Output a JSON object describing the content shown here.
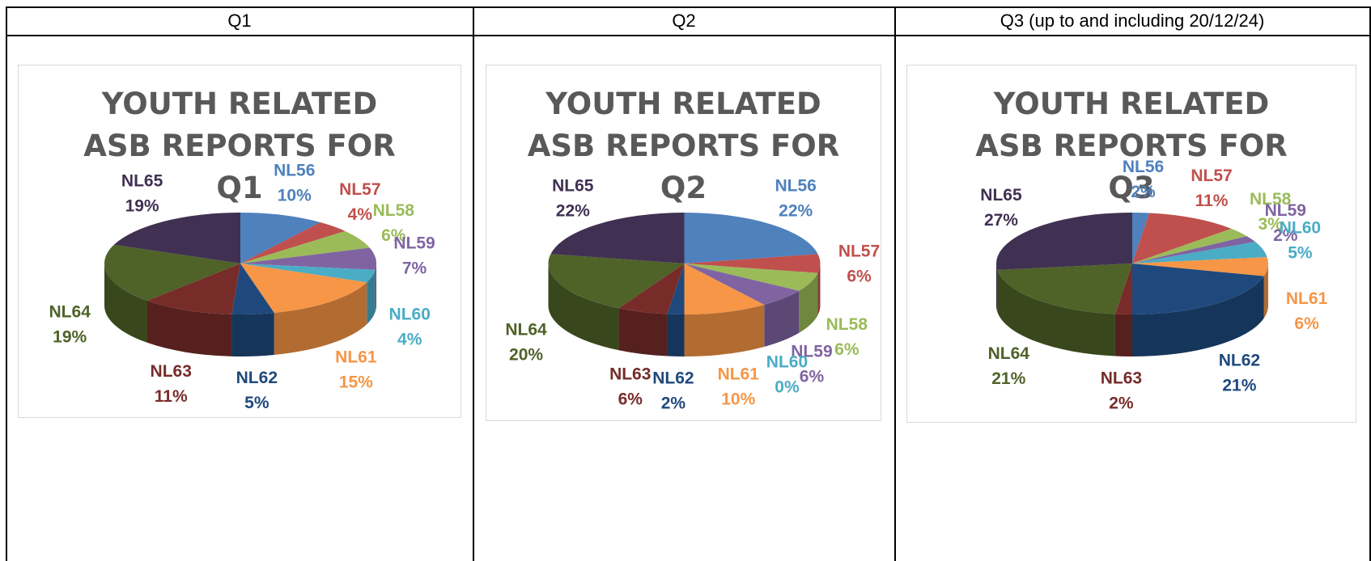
{
  "table": {
    "headers": [
      "Q1",
      "Q2",
      "Q3 (up to and including 20/12/24)"
    ]
  },
  "chart_data": [
    {
      "type": "pie",
      "title": "YOUTH RELATED ASB REPORTS FOR Q1",
      "categories": [
        "NL56",
        "NL57",
        "NL58",
        "NL59",
        "NL60",
        "NL61",
        "NL62",
        "NL63",
        "NL64",
        "NL65"
      ],
      "values": [
        10,
        4,
        6,
        7,
        4,
        15,
        5,
        11,
        19,
        19
      ],
      "value_labels": [
        "10%",
        "4%",
        "6%",
        "7%",
        "4%",
        "15%",
        "5%",
        "11%",
        "19%",
        "19%"
      ],
      "colors": [
        "#4f81bd",
        "#c0504d",
        "#9bbb59",
        "#8064a2",
        "#4bacc6",
        "#f79646",
        "#1f497d",
        "#772c2a",
        "#4f6228",
        "#403152"
      ]
    },
    {
      "type": "pie",
      "title": "YOUTH RELATED ASB REPORTS FOR Q2",
      "categories": [
        "NL56",
        "NL57",
        "NL58",
        "NL59",
        "NL60",
        "NL61",
        "NL62",
        "NL63",
        "NL64",
        "NL65"
      ],
      "values": [
        22,
        6,
        6,
        6,
        0,
        10,
        2,
        6,
        20,
        22
      ],
      "value_labels": [
        "22%",
        "6%",
        "6%",
        "6%",
        "0%",
        "10%",
        "2%",
        "6%",
        "20%",
        "22%"
      ],
      "colors": [
        "#4f81bd",
        "#c0504d",
        "#9bbb59",
        "#8064a2",
        "#4bacc6",
        "#f79646",
        "#1f497d",
        "#772c2a",
        "#4f6228",
        "#403152"
      ]
    },
    {
      "type": "pie",
      "title": "YOUTH RELATED ASB REPORTS FOR Q3",
      "categories": [
        "NL56",
        "NL57",
        "NL58",
        "NL59",
        "NL60",
        "NL61",
        "NL62",
        "NL63",
        "NL64",
        "NL65"
      ],
      "values": [
        2,
        11,
        3,
        2,
        5,
        6,
        21,
        2,
        21,
        27
      ],
      "value_labels": [
        "2%",
        "11%",
        "3%",
        "2%",
        "5%",
        "6%",
        "21%",
        "2%",
        "21%",
        "27%"
      ],
      "colors": [
        "#4f81bd",
        "#c0504d",
        "#9bbb59",
        "#8064a2",
        "#4bacc6",
        "#f79646",
        "#1f497d",
        "#772c2a",
        "#4f6228",
        "#403152"
      ]
    }
  ]
}
